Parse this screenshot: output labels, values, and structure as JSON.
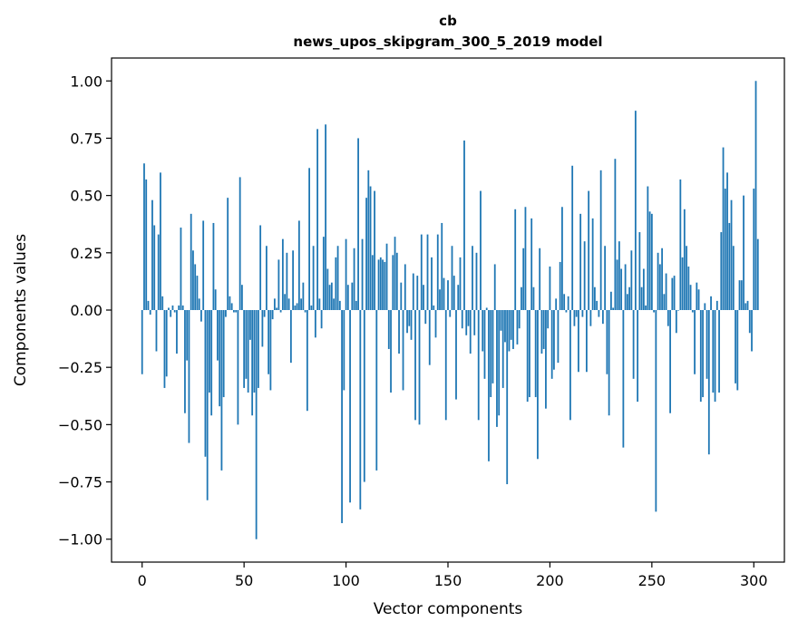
{
  "chart_data": {
    "type": "bar",
    "title": "cb",
    "subtitle": "news_upos_skipgram_300_5_2019 model",
    "xlabel": "Vector components",
    "ylabel": "Components values",
    "xlim": [
      -15,
      315
    ],
    "ylim": [
      -1.1,
      1.1
    ],
    "x_ticks": [
      0,
      50,
      100,
      150,
      200,
      250,
      300
    ],
    "x_tick_labels": [
      "0",
      "50",
      "100",
      "150",
      "200",
      "250",
      "300"
    ],
    "y_ticks": [
      1.0,
      0.75,
      0.5,
      0.25,
      0.0,
      -0.25,
      -0.5,
      -0.75,
      -1.0
    ],
    "y_tick_labels": [
      "1.00",
      "0.75",
      "0.50",
      "0.25",
      "0.00",
      "−0.25",
      "−0.50",
      "−0.75",
      "−1.00"
    ],
    "bar_color": "#1f77b4",
    "grid": false,
    "values": [
      -0.28,
      0.64,
      0.57,
      0.04,
      -0.02,
      0.48,
      0.37,
      -0.18,
      0.33,
      0.6,
      0.06,
      -0.34,
      -0.29,
      0.01,
      -0.03,
      0.02,
      -0.01,
      -0.19,
      0.02,
      0.36,
      0.02,
      -0.45,
      -0.22,
      -0.58,
      0.42,
      0.26,
      0.2,
      0.15,
      0.05,
      -0.05,
      0.39,
      -0.64,
      -0.83,
      -0.36,
      -0.46,
      0.38,
      0.09,
      -0.22,
      -0.42,
      -0.7,
      -0.38,
      -0.03,
      0.49,
      0.06,
      0.03,
      -0.01,
      -0.01,
      -0.5,
      0.58,
      0.11,
      -0.34,
      -0.3,
      -0.36,
      -0.13,
      -0.46,
      -0.36,
      -1.0,
      -0.34,
      0.37,
      -0.16,
      -0.03,
      0.28,
      -0.28,
      -0.35,
      -0.04,
      0.05,
      0.01,
      0.22,
      -0.01,
      0.31,
      0.07,
      0.25,
      0.05,
      -0.23,
      0.26,
      0.02,
      0.03,
      0.39,
      0.05,
      0.12,
      -0.01,
      -0.44,
      0.62,
      0.02,
      0.28,
      -0.12,
      0.79,
      0.05,
      -0.08,
      0.32,
      0.81,
      0.18,
      0.11,
      0.12,
      0.05,
      0.23,
      0.28,
      0.04,
      -0.93,
      -0.35,
      0.31,
      0.11,
      -0.84,
      0.12,
      0.27,
      0.04,
      0.75,
      -0.87,
      0.31,
      -0.75,
      0.49,
      0.61,
      0.54,
      0.24,
      0.52,
      -0.7,
      0.22,
      0.23,
      0.22,
      0.21,
      0.29,
      -0.17,
      -0.36,
      0.24,
      0.32,
      0.25,
      -0.19,
      0.12,
      -0.35,
      0.2,
      -0.1,
      -0.07,
      -0.13,
      0.16,
      -0.48,
      0.15,
      -0.5,
      0.33,
      0.11,
      -0.06,
      0.33,
      -0.24,
      0.23,
      0.02,
      -0.12,
      0.33,
      0.09,
      0.38,
      0.14,
      -0.48,
      0.13,
      -0.03,
      0.28,
      0.15,
      -0.39,
      0.11,
      0.23,
      -0.08,
      0.74,
      -0.11,
      -0.07,
      -0.19,
      0.28,
      -0.11,
      0.25,
      -0.48,
      0.52,
      -0.18,
      -0.3,
      0.01,
      -0.66,
      -0.38,
      -0.32,
      0.2,
      -0.51,
      -0.46,
      -0.09,
      -0.34,
      -0.14,
      -0.76,
      -0.18,
      -0.13,
      -0.17,
      0.44,
      -0.15,
      -0.08,
      0.1,
      0.27,
      0.45,
      -0.4,
      -0.38,
      0.4,
      0.1,
      -0.38,
      -0.65,
      0.27,
      -0.19,
      -0.17,
      -0.43,
      -0.08,
      0.19,
      -0.3,
      -0.26,
      0.05,
      -0.23,
      0.21,
      0.45,
      0.07,
      -0.01,
      0.06,
      -0.48,
      0.63,
      -0.07,
      -0.03,
      -0.27,
      0.42,
      -0.03,
      0.3,
      -0.27,
      0.52,
      -0.07,
      0.4,
      0.1,
      0.04,
      -0.03,
      0.61,
      -0.06,
      0.28,
      -0.28,
      -0.46,
      0.08,
      0.01,
      0.66,
      0.22,
      0.3,
      0.18,
      -0.6,
      0.2,
      0.07,
      0.1,
      0.26,
      -0.3,
      0.87,
      -0.4,
      0.34,
      0.1,
      0.18,
      0.02,
      0.54,
      0.43,
      0.42,
      -0.01,
      -0.88,
      0.25,
      0.2,
      0.27,
      0.07,
      0.16,
      -0.07,
      -0.45,
      0.14,
      0.15,
      -0.1,
      0.0,
      0.57,
      0.23,
      0.44,
      0.28,
      0.19,
      0.11,
      -0.01,
      -0.28,
      0.12,
      0.09,
      -0.4,
      -0.38,
      0.03,
      -0.3,
      -0.63,
      0.06,
      -0.36,
      -0.4,
      0.04,
      -0.36,
      0.34,
      0.71,
      0.53,
      0.6,
      0.38,
      0.48,
      0.28,
      -0.32,
      -0.35,
      0.13,
      0.13,
      0.5,
      0.03,
      0.04,
      -0.1,
      -0.18,
      0.53,
      1.0,
      0.31
    ]
  }
}
